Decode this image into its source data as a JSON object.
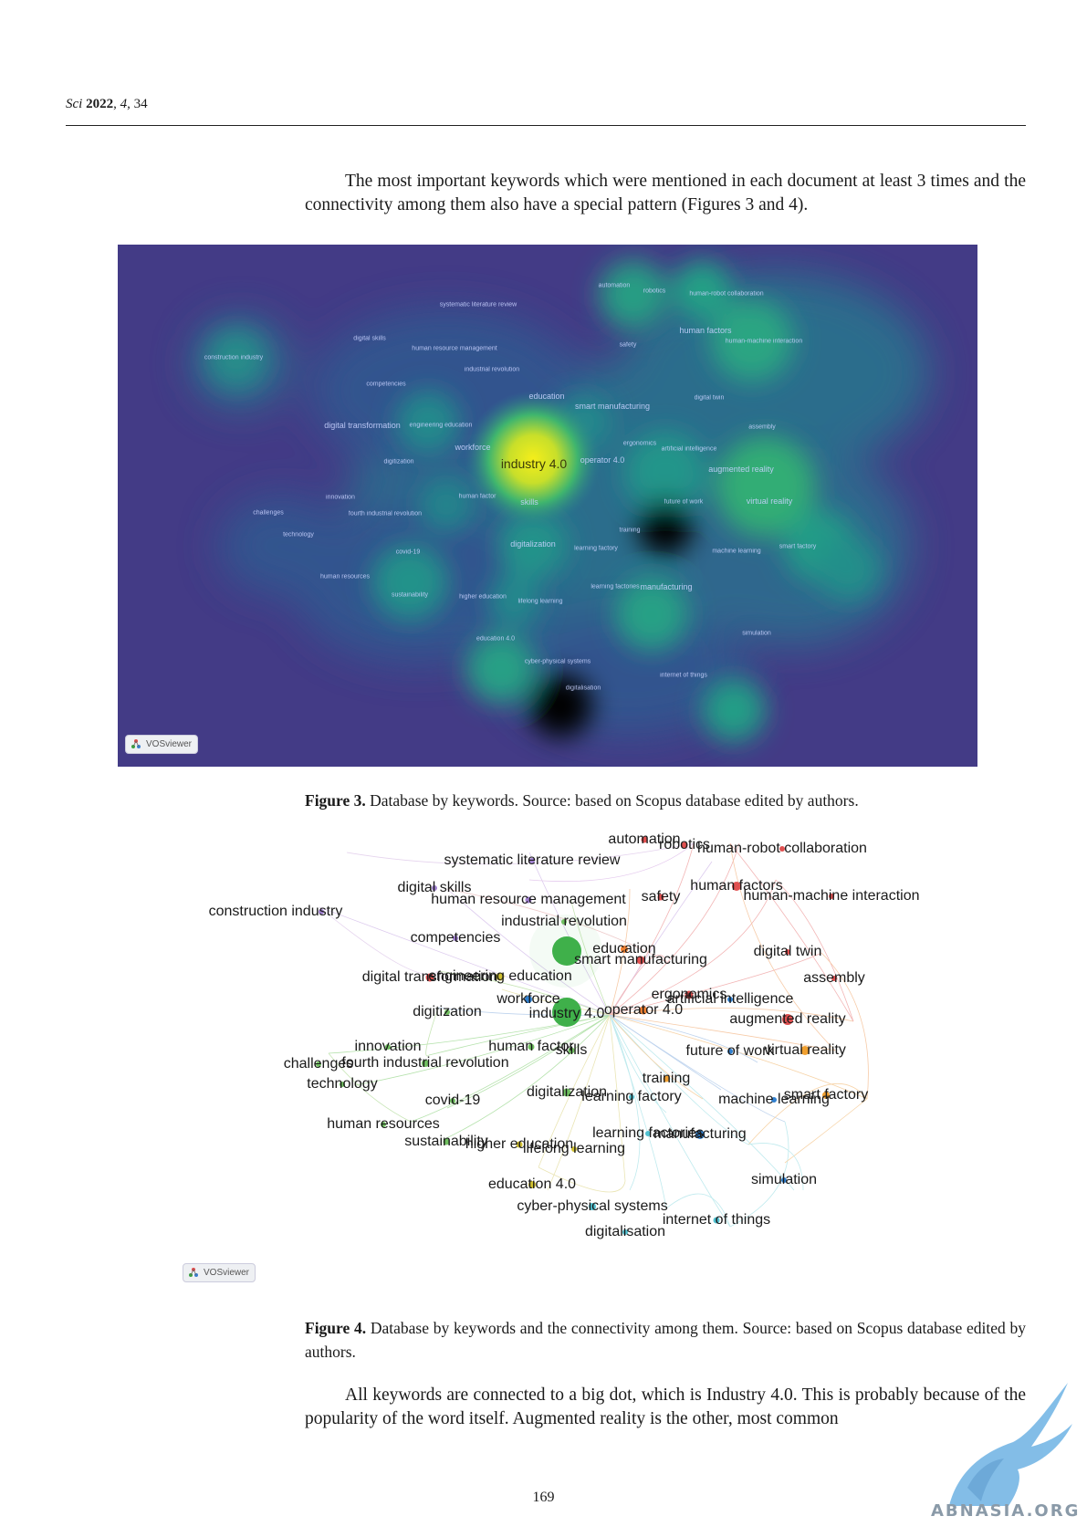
{
  "header": {
    "journal": "Sci",
    "year": "2022",
    "volume": "4",
    "article": "34"
  },
  "para1": "The most important keywords which were mentioned in each document at least 3 times and the connectivity among them also have a special pattern (Figures 3 and 4).",
  "figure3": {
    "label": "Figure 3.",
    "caption": "Database by keywords. Source: based on Scopus database edited by authors.",
    "badge": "VOSviewer",
    "keywords": [
      "automation",
      "robotics",
      "human-robot collaboration",
      "systematic literature review",
      "digital skills",
      "human resource management",
      "construction industry",
      "human factors",
      "safety",
      "human-machine interaction",
      "industrial revolution",
      "competencies",
      "education",
      "smart manufacturing",
      "digital twin",
      "digital transformation",
      "engineering education",
      "assembly",
      "ergonomics",
      "artificial intelligence",
      "workforce",
      "industry 4.0",
      "operator 4.0",
      "digitization",
      "augmented reality",
      "innovation",
      "human factor",
      "skills",
      "future of work",
      "virtual reality",
      "challenges",
      "fourth industrial revolution",
      "technology",
      "training",
      "digitalization",
      "learning factory",
      "machine learning",
      "smart factory",
      "covid-19",
      "human resources",
      "learning factories",
      "manufacturing",
      "sustainability",
      "higher education",
      "lifelong learning",
      "simulation",
      "education 4.0",
      "cyber-physical systems",
      "internet of things",
      "digitalisation"
    ]
  },
  "figure4": {
    "label": "Figure 4.",
    "caption": "Database by keywords and the connectivity among them. Source: based on Scopus database edited by authors.",
    "badge": "VOSviewer"
  },
  "para2": "All keywords are connected to a big dot, which is Industry 4.0. This is probably because of the popularity of the word itself. Augmented reality is the other, most common",
  "page_number": "169",
  "watermark": "ABNASIA.ORG"
}
